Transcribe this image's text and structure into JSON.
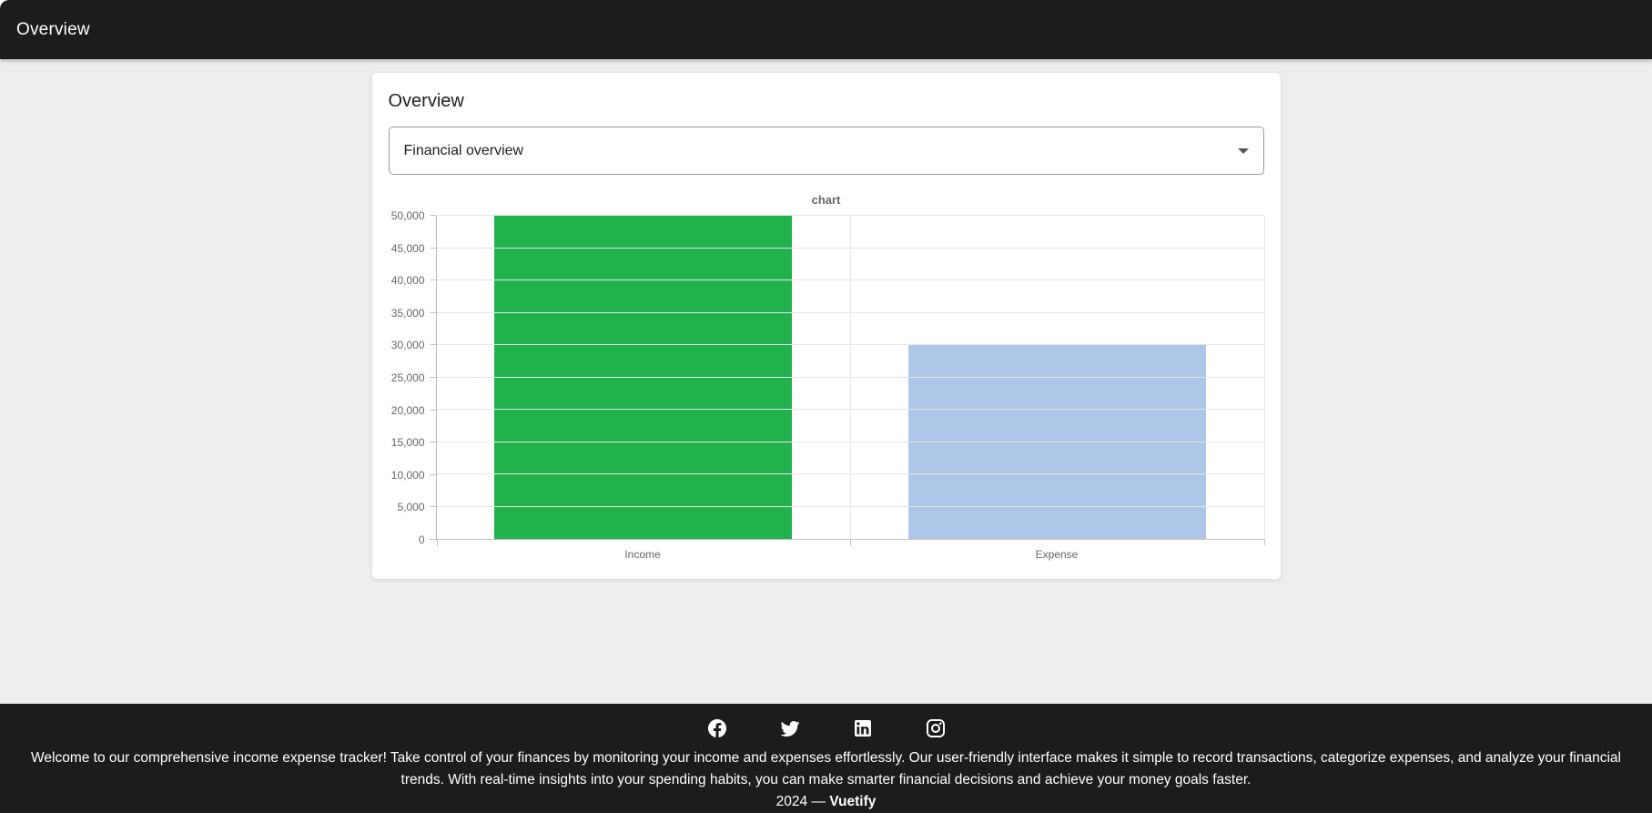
{
  "header": {
    "title": "Overview"
  },
  "card": {
    "title": "Overview",
    "select": {
      "value": "Financial overview"
    }
  },
  "chart_data": {
    "type": "bar",
    "title": "chart",
    "categories": [
      "Income",
      "Expense"
    ],
    "values": [
      50000,
      30000
    ],
    "bar_colors": [
      "#22b24c",
      "#aec7e8"
    ],
    "ylim": [
      0,
      50000
    ],
    "ytick_step": 5000,
    "ytick_labels": [
      "0",
      "5,000",
      "10,000",
      "15,000",
      "20,000",
      "25,000",
      "30,000",
      "35,000",
      "40,000",
      "45,000",
      "50,000"
    ],
    "grid": true,
    "legend": false,
    "xlabel": "",
    "ylabel": ""
  },
  "footer": {
    "social_icons": [
      "facebook-icon",
      "twitter-icon",
      "linkedin-icon",
      "instagram-icon"
    ],
    "description": "Welcome to our comprehensive income expense tracker! Take control of your finances by monitoring your income and expenses effortlessly. Our user-friendly interface makes it simple to record transactions, categorize expenses, and analyze your financial trends. With real-time insights into your spending habits, you can make smarter financial decisions and achieve your money goals faster.",
    "year": "2024",
    "separator": "—",
    "brand": "Vuetify"
  },
  "colors": {
    "header_bg": "#1c1c1c",
    "page_bg": "#eeeeee",
    "card_bg": "#ffffff",
    "footer_bg": "#1c1c1c",
    "income_bar": "#22b24c",
    "expense_bar": "#aec7e8"
  }
}
